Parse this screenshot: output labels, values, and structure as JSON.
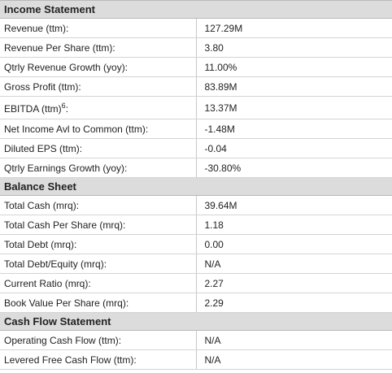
{
  "sections": [
    {
      "title": "Income Statement",
      "rows": [
        {
          "label": "Revenue (ttm):",
          "value": "127.29M"
        },
        {
          "label": "Revenue Per Share (ttm):",
          "value": "3.80"
        },
        {
          "label": "Qtrly Revenue Growth (yoy):",
          "value": "11.00%"
        },
        {
          "label": "Gross Profit (ttm):",
          "value": "83.89M"
        },
        {
          "label": "EBITDA (ttm)",
          "footnote": "6",
          "suffix": ":",
          "value": "13.37M"
        },
        {
          "label": "Net Income Avl to Common (ttm):",
          "value": "-1.48M"
        },
        {
          "label": "Diluted EPS (ttm):",
          "value": "-0.04"
        },
        {
          "label": "Qtrly Earnings Growth (yoy):",
          "value": "-30.80%"
        }
      ]
    },
    {
      "title": "Balance Sheet",
      "rows": [
        {
          "label": "Total Cash (mrq):",
          "value": "39.64M"
        },
        {
          "label": "Total Cash Per Share (mrq):",
          "value": "1.18"
        },
        {
          "label": "Total Debt (mrq):",
          "value": "0.00"
        },
        {
          "label": "Total Debt/Equity (mrq):",
          "value": "N/A"
        },
        {
          "label": "Current Ratio (mrq):",
          "value": "2.27"
        },
        {
          "label": "Book Value Per Share (mrq):",
          "value": "2.29"
        }
      ]
    },
    {
      "title": "Cash Flow Statement",
      "rows": [
        {
          "label": "Operating Cash Flow (ttm):",
          "value": "N/A"
        },
        {
          "label": "Levered Free Cash Flow (ttm):",
          "value": "N/A"
        }
      ]
    }
  ]
}
